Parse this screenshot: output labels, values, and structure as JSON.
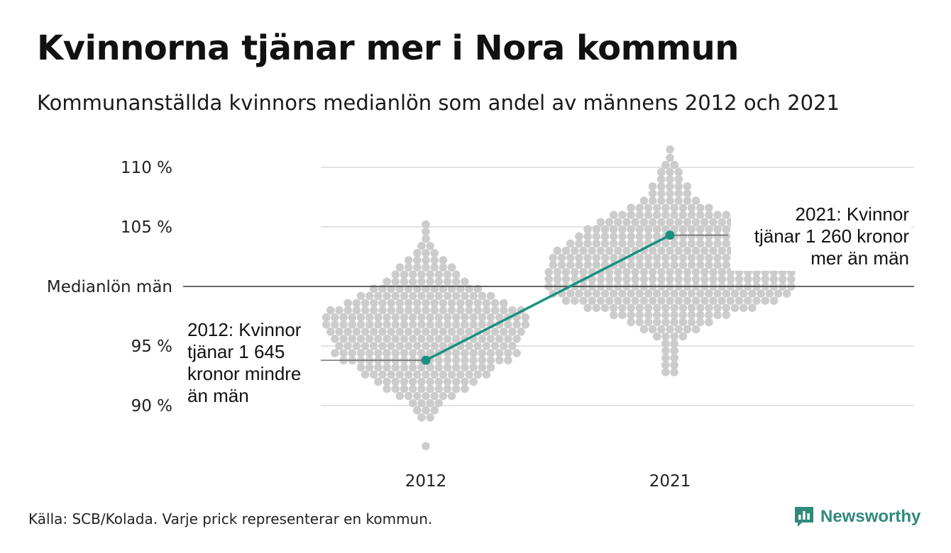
{
  "header": {
    "title": "Kvinnorna tjänar mer i Nora kommun",
    "subtitle": "Kommunanställda kvinnors medianlön som andel av männens 2012 och 2021"
  },
  "footer": {
    "source": "Källa: SCB/Kolada. Varje prick representerar en kommun.",
    "brand": "Newsworthy"
  },
  "colors": {
    "dot": "#cccccc",
    "highlight": "#1a9080",
    "grid": "#e2e2e2",
    "baseline": "#333333",
    "brand": "#2f8a7c"
  },
  "chart_data": {
    "type": "scatter",
    "title": "Kvinnorna tjänar mer i Nora kommun",
    "subtitle": "Kommunanställda kvinnors medianlön som andel av männens 2012 och 2021",
    "categories": [
      "2012",
      "2021"
    ],
    "y_ticks": [
      {
        "value": 90,
        "label": "90 %"
      },
      {
        "value": 95,
        "label": "95 %"
      },
      {
        "value": 100,
        "label": "Medianlön män"
      },
      {
        "value": 105,
        "label": "105 %"
      },
      {
        "value": 110,
        "label": "110 %"
      }
    ],
    "ylim": [
      86.5,
      111.5
    ],
    "grid": true,
    "reference_line": {
      "value": 100,
      "label": "Medianlön män"
    },
    "distribution_2012": {
      "min": 86.6,
      "max": 105.3,
      "median": 96.8,
      "bins": [
        {
          "y": 105.2,
          "n": 1
        },
        {
          "y": 104.6,
          "n": 1
        },
        {
          "y": 104.0,
          "n": 1
        },
        {
          "y": 103.4,
          "n": 2
        },
        {
          "y": 102.8,
          "n": 3
        },
        {
          "y": 102.2,
          "n": 5
        },
        {
          "y": 101.6,
          "n": 7
        },
        {
          "y": 101.0,
          "n": 8
        },
        {
          "y": 100.4,
          "n": 10
        },
        {
          "y": 99.8,
          "n": 13
        },
        {
          "y": 99.2,
          "n": 16
        },
        {
          "y": 98.6,
          "n": 19
        },
        {
          "y": 98.0,
          "n": 23
        },
        {
          "y": 97.4,
          "n": 24
        },
        {
          "y": 96.8,
          "n": 24
        },
        {
          "y": 96.2,
          "n": 23
        },
        {
          "y": 95.6,
          "n": 22
        },
        {
          "y": 95.0,
          "n": 21
        },
        {
          "y": 94.4,
          "n": 22
        },
        {
          "y": 93.8,
          "n": 20
        },
        {
          "y": 93.2,
          "n": 16
        },
        {
          "y": 92.6,
          "n": 15
        },
        {
          "y": 92.0,
          "n": 12
        },
        {
          "y": 91.4,
          "n": 10
        },
        {
          "y": 90.8,
          "n": 7
        },
        {
          "y": 90.2,
          "n": 4
        },
        {
          "y": 89.6,
          "n": 3
        },
        {
          "y": 89.0,
          "n": 2
        },
        {
          "y": 86.6,
          "n": 1
        }
      ]
    },
    "distribution_2021": {
      "min": 92.6,
      "max": 111.5,
      "median": 101.0,
      "bins": [
        {
          "y": 111.5,
          "n": 1
        },
        {
          "y": 110.8,
          "n": 1
        },
        {
          "y": 110.2,
          "n": 2
        },
        {
          "y": 109.6,
          "n": 3
        },
        {
          "y": 109.0,
          "n": 3
        },
        {
          "y": 108.4,
          "n": 5
        },
        {
          "y": 107.8,
          "n": 5
        },
        {
          "y": 107.2,
          "n": 7
        },
        {
          "y": 106.6,
          "n": 10
        },
        {
          "y": 106.0,
          "n": 14
        },
        {
          "y": 105.4,
          "n": 17
        },
        {
          "y": 104.8,
          "n": 20
        },
        {
          "y": 104.2,
          "n": 22
        },
        {
          "y": 103.6,
          "n": 24
        },
        {
          "y": 103.0,
          "n": 27
        },
        {
          "y": 102.4,
          "n": 28
        },
        {
          "y": 101.8,
          "n": 28
        },
        {
          "y": 101.2,
          "n": 29
        },
        {
          "y": 100.6,
          "n": 29
        },
        {
          "y": 100.0,
          "n": 29
        },
        {
          "y": 99.4,
          "n": 28
        },
        {
          "y": 98.8,
          "n": 25
        },
        {
          "y": 98.2,
          "n": 20
        },
        {
          "y": 97.6,
          "n": 14
        },
        {
          "y": 97.0,
          "n": 10
        },
        {
          "y": 96.4,
          "n": 7
        },
        {
          "y": 95.8,
          "n": 4
        },
        {
          "y": 95.2,
          "n": 2
        },
        {
          "y": 94.6,
          "n": 2
        },
        {
          "y": 94.0,
          "n": 2
        },
        {
          "y": 93.4,
          "n": 2
        },
        {
          "y": 92.8,
          "n": 2
        }
      ]
    },
    "highlight": {
      "name": "Nora",
      "points": [
        {
          "x": "2012",
          "y": 93.8
        },
        {
          "x": "2021",
          "y": 104.3
        }
      ]
    },
    "annotations": [
      {
        "x": "2012",
        "lines": [
          "2012: Kvinnor",
          "tjänar 1 645",
          "kronor mindre",
          "än män"
        ]
      },
      {
        "x": "2021",
        "lines": [
          "2021: Kvinnor",
          "tjänar 1 260 kronor",
          "mer än män"
        ]
      }
    ]
  }
}
